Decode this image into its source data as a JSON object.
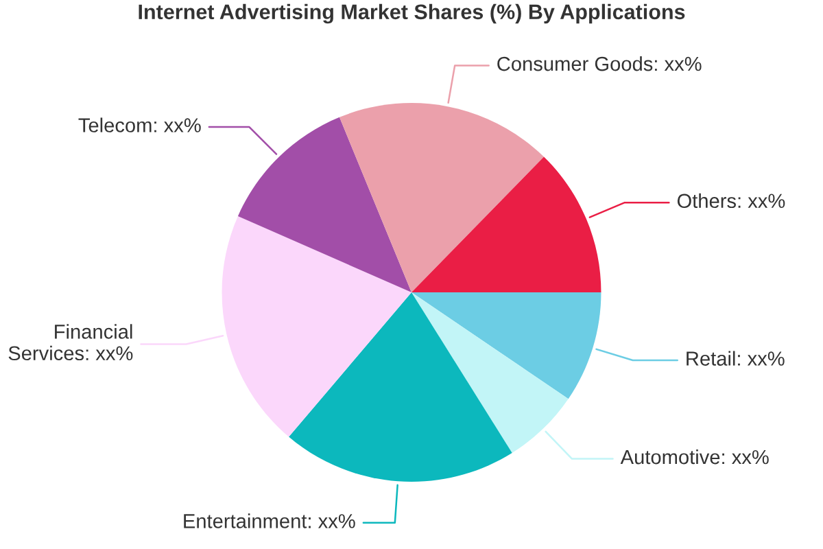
{
  "chart_data": {
    "type": "pie",
    "title": "Internet Advertising Market Shares (%) By Applications",
    "categories": [
      "Retail",
      "Automotive",
      "Entertainment",
      "Financial Services",
      "Telecom",
      "Consumer Goods",
      "Others"
    ],
    "values": [
      9.5,
      6.6,
      20.1,
      20.4,
      12.2,
      18.5,
      12.7
    ],
    "colors": [
      "#6ccde4",
      "#c2f5f7",
      "#0cb8bd",
      "#fbd7fb",
      "#a24ea8",
      "#eba0ab",
      "#ea1e45"
    ],
    "value_labels": [
      "xx%",
      "xx%",
      "xx%",
      "xx%",
      "xx%",
      "xx%",
      "xx%"
    ],
    "legend": false
  }
}
